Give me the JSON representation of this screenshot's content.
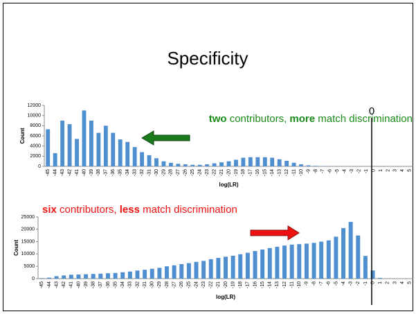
{
  "title": "Specificity",
  "zero_marker": "0",
  "chart_data": [
    {
      "type": "bar",
      "color": "#4f8fcf",
      "annotation": {
        "color": "#1a8a1a",
        "parts": [
          {
            "text": "two",
            "bold": true
          },
          {
            "text": " contributors, ",
            "bold": false
          },
          {
            "text": "more",
            "bold": true
          },
          {
            "text": " match discrimination",
            "bold": false
          }
        ]
      },
      "x_label": "log(LR)",
      "y_label": "Count",
      "categories": [
        -45,
        -44,
        -43,
        -42,
        -41,
        -40,
        -39,
        -38,
        -37,
        -36,
        -35,
        -34,
        -33,
        -32,
        -31,
        -30,
        -29,
        -28,
        -27,
        -26,
        -25,
        -24,
        -23,
        -22,
        -21,
        -20,
        -19,
        -18,
        -17,
        -16,
        -15,
        -14,
        -13,
        -12,
        -11,
        -10,
        -9,
        -8,
        -7,
        -6,
        -5,
        -4,
        -3,
        -2,
        -1,
        0,
        1,
        2,
        3,
        4,
        5
      ],
      "values": [
        7300,
        2600,
        9000,
        8300,
        5400,
        11000,
        9000,
        6600,
        8000,
        6600,
        5300,
        4800,
        3800,
        2800,
        2200,
        1600,
        1000,
        700,
        500,
        400,
        300,
        300,
        400,
        600,
        800,
        1000,
        1300,
        1700,
        1800,
        1800,
        1800,
        1700,
        1400,
        1100,
        700,
        400,
        200,
        100,
        50,
        30,
        20,
        10,
        0,
        0,
        0,
        0,
        0,
        0,
        0,
        0,
        0
      ],
      "ylim": [
        0,
        12000
      ],
      "yticks": [
        0,
        2000,
        4000,
        6000,
        8000,
        10000,
        12000
      ]
    },
    {
      "type": "bar",
      "color": "#4f8fcf",
      "annotation": {
        "color": "#ee1111",
        "parts": [
          {
            "text": "six",
            "bold": true
          },
          {
            "text": " contributors, ",
            "bold": false
          },
          {
            "text": "less",
            "bold": true
          },
          {
            "text": " match discrimination",
            "bold": false
          }
        ]
      },
      "x_label": "log(LR)",
      "y_label": "Count",
      "categories": [
        -45,
        -44,
        -43,
        -42,
        -41,
        -40,
        -39,
        -38,
        -37,
        -36,
        -35,
        -34,
        -33,
        -32,
        -31,
        -30,
        -29,
        -28,
        -27,
        -26,
        -25,
        -24,
        -23,
        -22,
        -21,
        -20,
        -19,
        -18,
        -17,
        -16,
        -15,
        -14,
        -13,
        -12,
        -11,
        -10,
        -9,
        -8,
        -7,
        -6,
        -5,
        -4,
        -3,
        -2,
        -1,
        0,
        1,
        2,
        3,
        4,
        5
      ],
      "values": [
        200,
        400,
        1000,
        1300,
        1600,
        1700,
        1800,
        1900,
        2000,
        2200,
        2300,
        2600,
        2900,
        3300,
        3600,
        4000,
        4400,
        5000,
        5400,
        5900,
        6300,
        6800,
        7200,
        7900,
        8400,
        8900,
        9300,
        9900,
        10500,
        11200,
        11800,
        12400,
        12900,
        13400,
        13800,
        14000,
        14200,
        14500,
        15000,
        15500,
        17000,
        20500,
        23000,
        17500,
        9200,
        3300,
        300,
        50,
        0,
        0,
        0
      ],
      "ylim": [
        0,
        25000
      ],
      "yticks": [
        0,
        5000,
        10000,
        15000,
        20000,
        25000
      ]
    }
  ]
}
